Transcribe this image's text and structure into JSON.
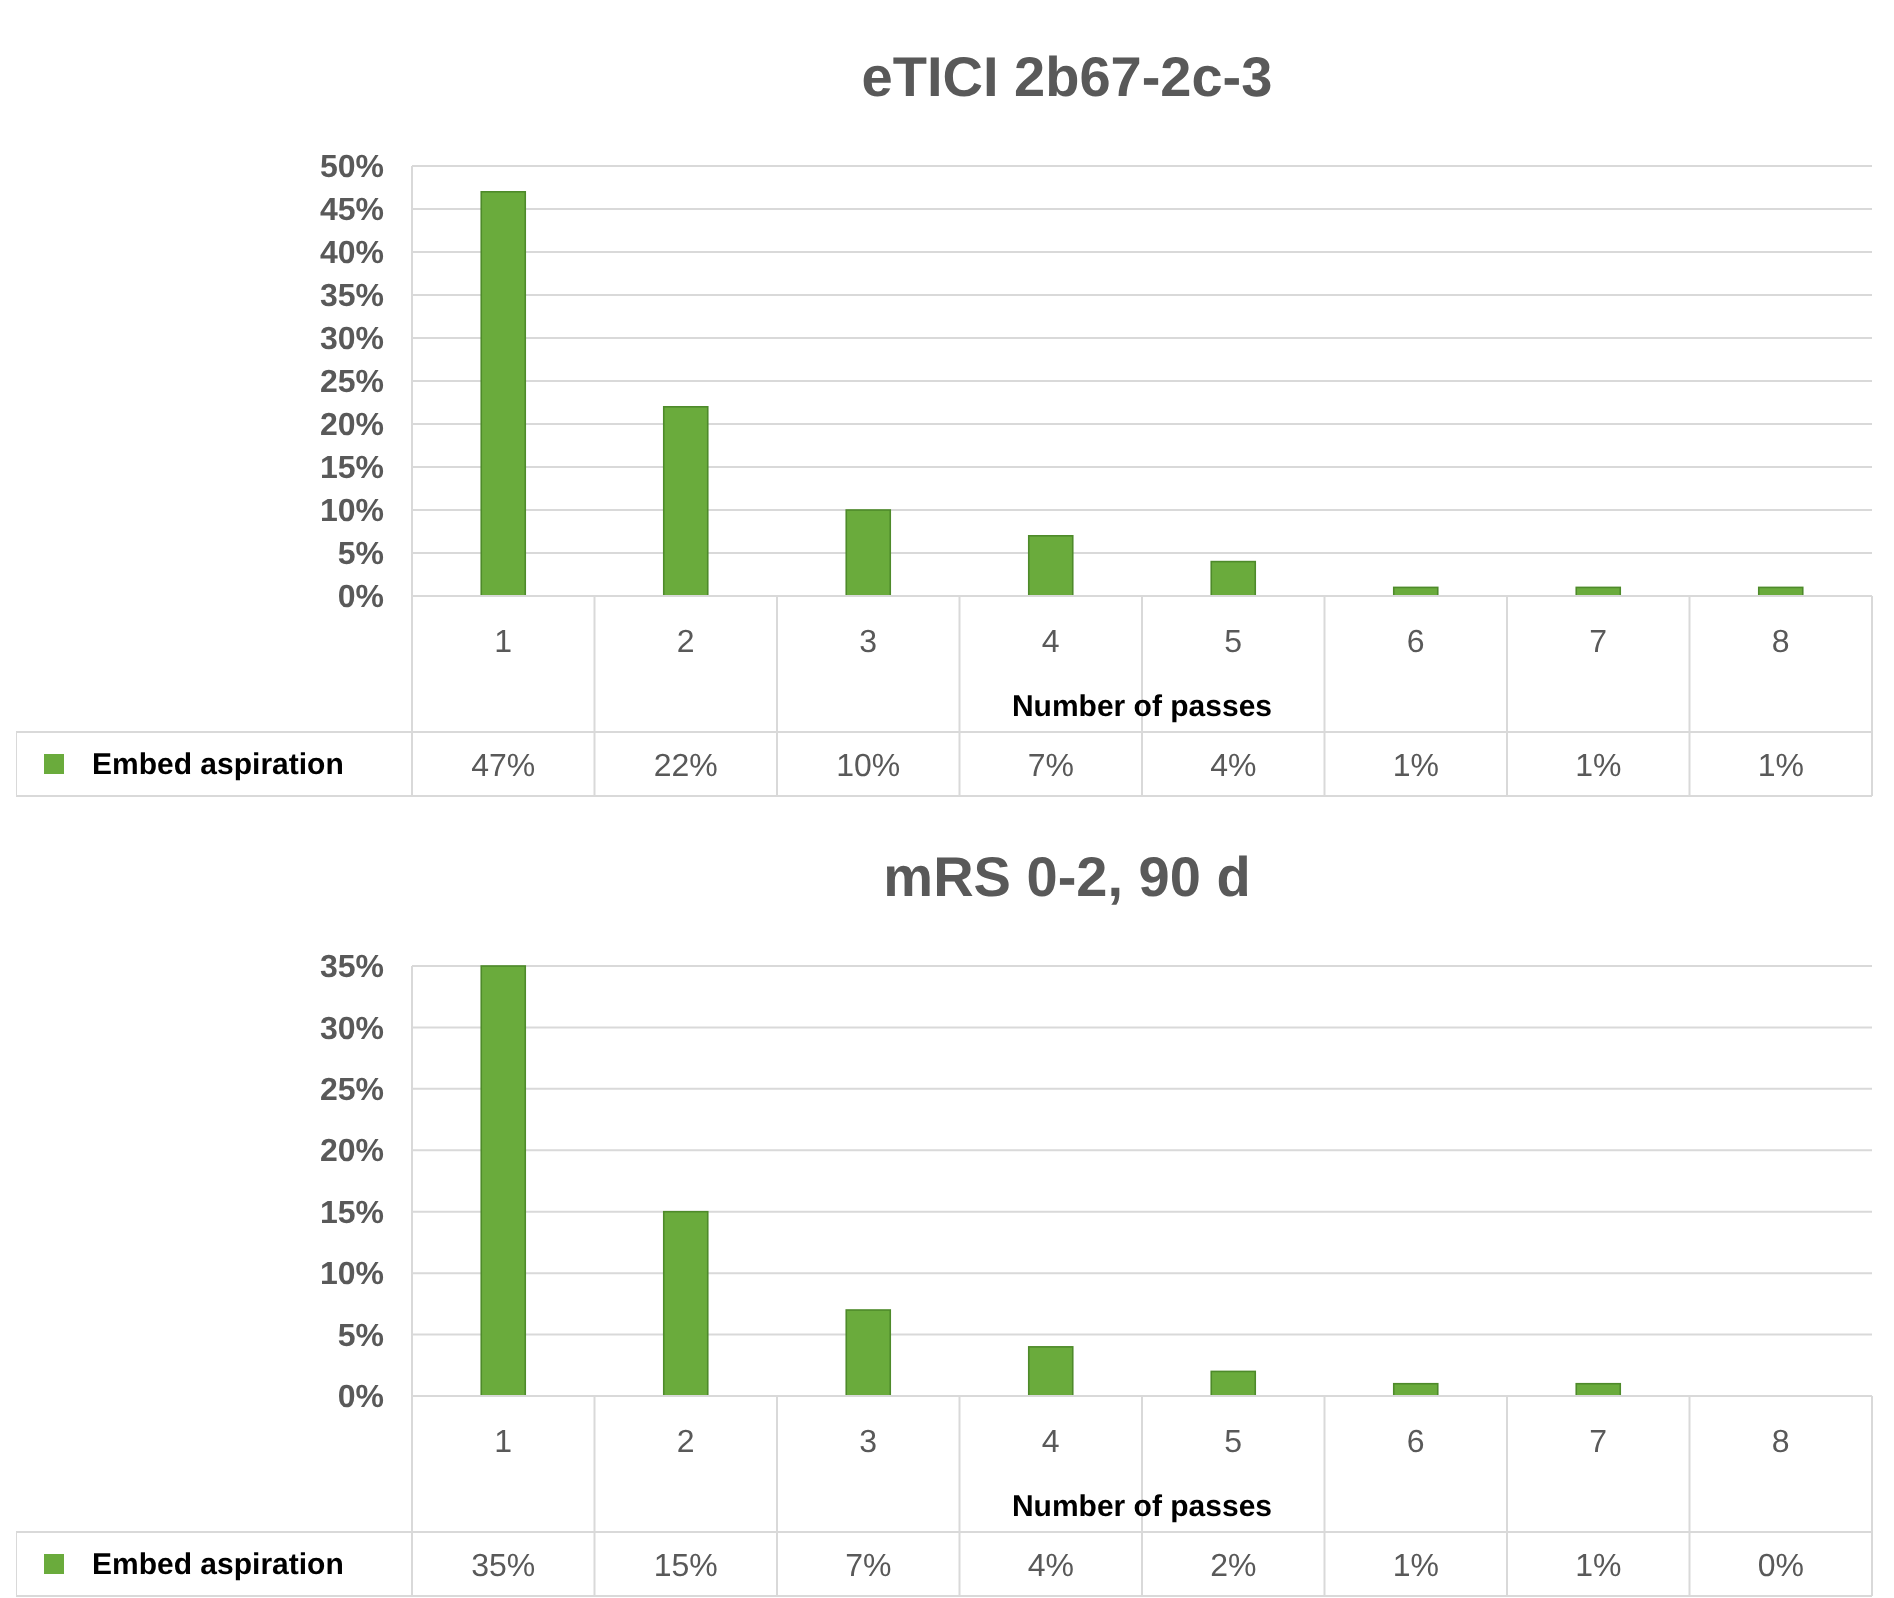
{
  "chart_data": [
    {
      "type": "bar",
      "title": "eTICI 2b67-2c-3",
      "xlabel": "Number of passes",
      "categories": [
        "1",
        "2",
        "3",
        "4",
        "5",
        "6",
        "7",
        "8"
      ],
      "series": [
        {
          "name": "Embed aspiration",
          "color": "#6aab3c",
          "values": [
            47,
            22,
            10,
            7,
            4,
            1,
            1,
            1
          ],
          "value_labels": [
            "47%",
            "22%",
            "10%",
            "7%",
            "4%",
            "1%",
            "1%",
            "1%"
          ]
        }
      ],
      "ylim": [
        0,
        50
      ],
      "yticks": [
        {
          "value": 0,
          "label": "0%"
        },
        {
          "value": 5,
          "label": "5%"
        },
        {
          "value": 10,
          "label": "10%"
        },
        {
          "value": 15,
          "label": "15%"
        },
        {
          "value": 20,
          "label": "20%"
        },
        {
          "value": 25,
          "label": "25%"
        },
        {
          "value": 30,
          "label": "30%"
        },
        {
          "value": 35,
          "label": "35%"
        },
        {
          "value": 40,
          "label": "40%"
        },
        {
          "value": 45,
          "label": "45%"
        },
        {
          "value": 50,
          "label": "50%"
        }
      ],
      "grid": "y",
      "legend": "bottom"
    },
    {
      "type": "bar",
      "title": "mRS 0-2, 90 d",
      "xlabel": "Number of passes",
      "categories": [
        "1",
        "2",
        "3",
        "4",
        "5",
        "6",
        "7",
        "8"
      ],
      "series": [
        {
          "name": "Embed aspiration",
          "color": "#6aab3c",
          "values": [
            35,
            15,
            7,
            4,
            2,
            1,
            1,
            0
          ],
          "value_labels": [
            "35%",
            "15%",
            "7%",
            "4%",
            "2%",
            "1%",
            "1%",
            "0%"
          ]
        }
      ],
      "ylim": [
        0,
        35
      ],
      "yticks": [
        {
          "value": 0,
          "label": "0%"
        },
        {
          "value": 5,
          "label": "5%"
        },
        {
          "value": 10,
          "label": "10%"
        },
        {
          "value": 15,
          "label": "15%"
        },
        {
          "value": 20,
          "label": "20%"
        },
        {
          "value": 25,
          "label": "25%"
        },
        {
          "value": 30,
          "label": "30%"
        },
        {
          "value": 35,
          "label": "35%"
        }
      ],
      "grid": "y",
      "legend": "bottom"
    }
  ]
}
